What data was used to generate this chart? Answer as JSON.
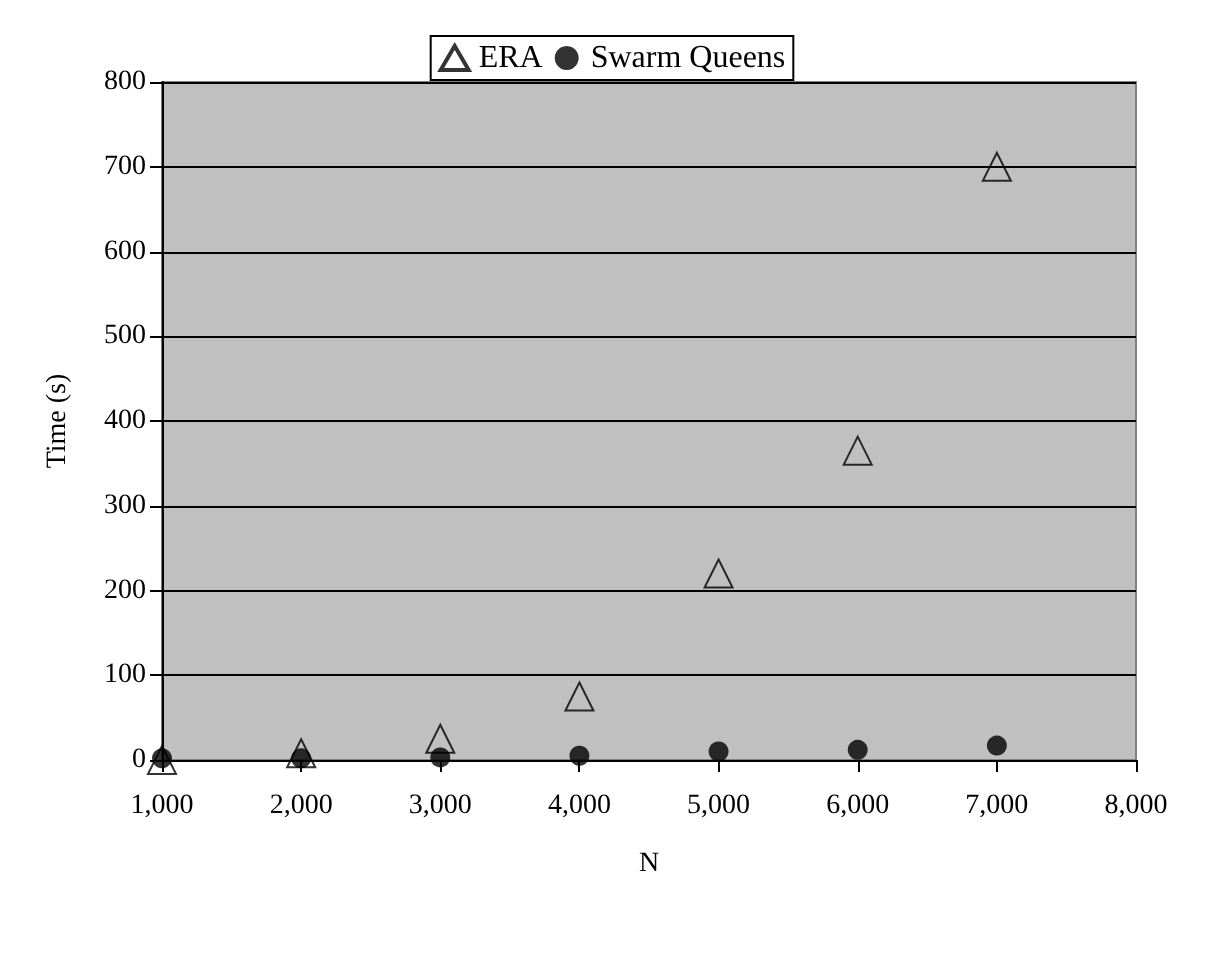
{
  "chart_data": {
    "type": "scatter",
    "xlabel": "N",
    "ylabel": "Time (s)",
    "series": [
      {
        "name": "ERA",
        "color": "#000000",
        "marker": "triangle",
        "x": [
          1000,
          2000,
          3000,
          4000,
          5000,
          6000,
          7000
        ],
        "values": [
          0,
          8,
          25,
          75,
          220,
          365,
          700
        ]
      },
      {
        "name": "Swarm Queens",
        "color": "#000000",
        "marker": "circle",
        "x": [
          1000,
          2000,
          3000,
          4000,
          5000,
          6000,
          7000
        ],
        "values": [
          2,
          2,
          3,
          5,
          10,
          12,
          17
        ]
      }
    ],
    "xlim": [
      1000,
      8000
    ],
    "xticks": [
      {
        "value": 1000,
        "label": "1,000"
      },
      {
        "value": 2000,
        "label": "2,000"
      },
      {
        "value": 3000,
        "label": "3,000"
      },
      {
        "value": 4000,
        "label": "4,000"
      },
      {
        "value": 5000,
        "label": "5,000"
      },
      {
        "value": 6000,
        "label": "6,000"
      },
      {
        "value": 7000,
        "label": "7,000"
      },
      {
        "value": 8000,
        "label": "8,000"
      }
    ],
    "ylim": [
      0,
      800
    ],
    "yticks": [
      0,
      100,
      200,
      300,
      400,
      500,
      600,
      700,
      800
    ],
    "grid": "y",
    "legend": "top"
  }
}
